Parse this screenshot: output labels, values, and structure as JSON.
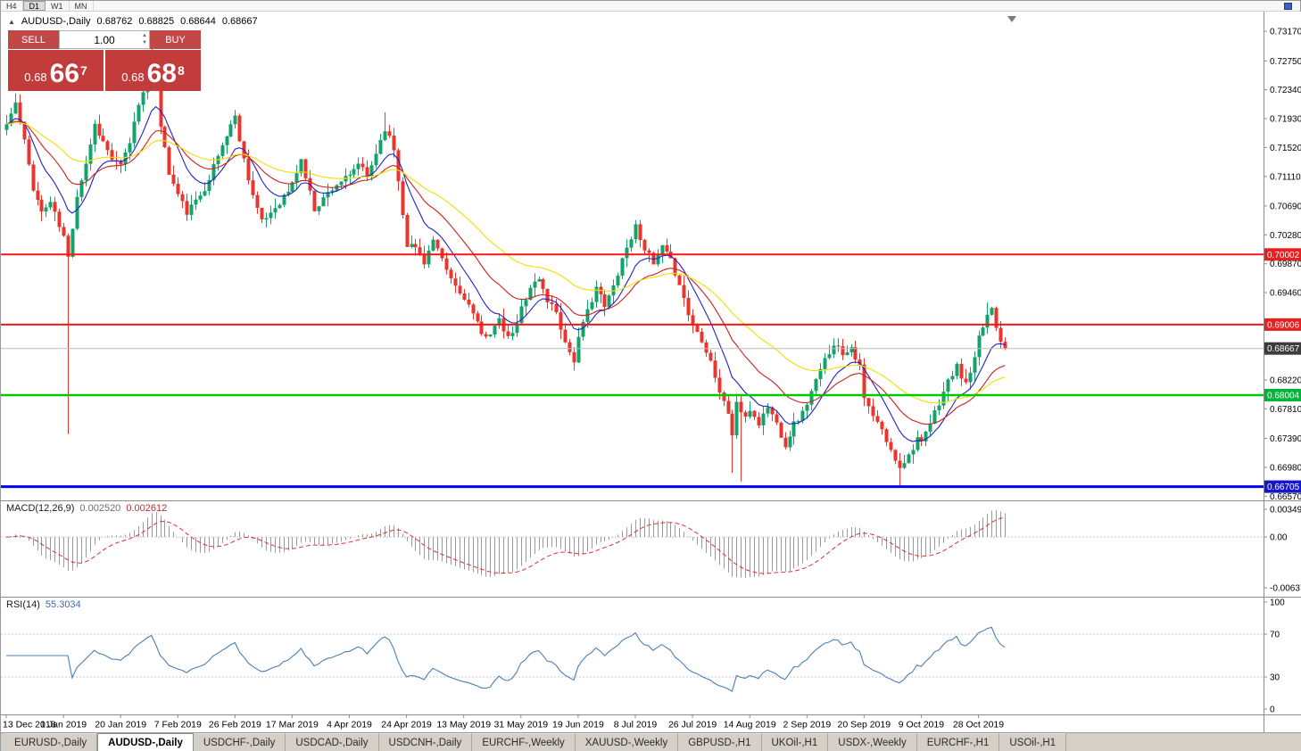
{
  "toolbar": {
    "timeframes": [
      {
        "label": "H4",
        "active": false
      },
      {
        "label": "D1",
        "active": true
      },
      {
        "label": "W1",
        "active": false
      },
      {
        "label": "MN",
        "active": false
      }
    ]
  },
  "chart": {
    "symbol_title": "AUDUSD-,Daily",
    "open": "0.68762",
    "high": "0.68825",
    "low": "0.68644",
    "close": "0.68667"
  },
  "trade_panel": {
    "sell_label": "SELL",
    "buy_label": "BUY",
    "volume": "1.00",
    "sell_price_small": "0.68",
    "sell_price_big": "66",
    "sell_price_sup": "7",
    "buy_price_small": "0.68",
    "buy_price_big": "68",
    "buy_price_sup": "8"
  },
  "price_axis": {
    "ticks": [
      {
        "t": "0.73170",
        "p": 0.7317
      },
      {
        "t": "0.72750",
        "p": 0.7275
      },
      {
        "t": "0.72340",
        "p": 0.7234
      },
      {
        "t": "0.71930",
        "p": 0.7193
      },
      {
        "t": "0.71520",
        "p": 0.7152
      },
      {
        "t": "0.71110",
        "p": 0.7111
      },
      {
        "t": "0.70690",
        "p": 0.7069
      },
      {
        "t": "0.70280",
        "p": 0.7028
      },
      {
        "t": "0.69870",
        "p": 0.6987
      },
      {
        "t": "0.69460",
        "p": 0.6946
      },
      {
        "t": "0.68220",
        "p": 0.6822
      },
      {
        "t": "0.67810",
        "p": 0.6781
      },
      {
        "t": "0.67390",
        "p": 0.6739
      },
      {
        "t": "0.66980",
        "p": 0.6698
      },
      {
        "t": "0.66570",
        "p": 0.6657
      }
    ],
    "badges": [
      {
        "t": "0.70002",
        "p": 0.70002,
        "bg": "#e81f1f"
      },
      {
        "t": "0.69006",
        "p": 0.69006,
        "bg": "#e81f1f"
      },
      {
        "t": "0.68667",
        "p": 0.68667,
        "bg": "#3c3c3c"
      },
      {
        "t": "0.68004",
        "p": 0.68004,
        "bg": "#00b43c"
      },
      {
        "t": "0.66705",
        "p": 0.66705,
        "bg": "#1616cc"
      }
    ]
  },
  "hlines": [
    {
      "p": 0.70002,
      "color": "#ff1414",
      "w": 2,
      "current": false
    },
    {
      "p": 0.69006,
      "color": "#ff1414",
      "w": 2,
      "current": false
    },
    {
      "p": 0.68667,
      "color": "#bcbcbc",
      "w": 1,
      "current": true
    },
    {
      "p": 0.68004,
      "color": "#00c800",
      "w": 2.5,
      "current": false
    },
    {
      "p": 0.66705,
      "color": "#0000ff",
      "w": 3,
      "current": false
    }
  ],
  "macd_panel": {
    "label": "MACD(12,26,9)",
    "main_value": "0.002520",
    "signal_value": "0.002612",
    "axis_top": "0.00349",
    "axis_zero": "0.00",
    "axis_bottom": "-0.00637"
  },
  "rsi_panel": {
    "label": "RSI(14)",
    "value": "55.3034",
    "axis_top": "100",
    "axis_high": "70",
    "axis_low": "30",
    "axis_bottom": "0",
    "levels": [
      70,
      30
    ]
  },
  "tabs": {
    "items": [
      {
        "label": "EURUSD-,Daily",
        "active": false
      },
      {
        "label": "AUDUSD-,Daily",
        "active": true
      },
      {
        "label": "USDCHF-,Daily",
        "active": false
      },
      {
        "label": "USDCAD-,Daily",
        "active": false
      },
      {
        "label": "USDCNH-,Daily",
        "active": false
      },
      {
        "label": "EURCHF-,Weekly",
        "active": false
      },
      {
        "label": "XAUUSD-,Weekly",
        "active": false
      },
      {
        "label": "GBPUSD-,H1",
        "active": false
      },
      {
        "label": "UKOil-,H1",
        "active": false
      },
      {
        "label": "USDX-,Weekly",
        "active": false
      },
      {
        "label": "EURCHF-,H1",
        "active": false
      },
      {
        "label": "USOil-,H1",
        "active": false
      }
    ]
  },
  "chart_data": {
    "type": "candlestick",
    "symbol": "AUDUSD",
    "timeframe": "Daily",
    "count": 228,
    "price_min": 0.6651,
    "price_max": 0.7345,
    "noise": 0.0005,
    "wick": 0.0014,
    "seed": 11,
    "ohlc_today": {
      "open": 0.68762,
      "high": 0.68825,
      "low": 0.68644,
      "close": 0.68667
    },
    "bid": 0.68667,
    "ask": 0.68688,
    "levels": {
      "resistance": [
        0.70002,
        0.69006
      ],
      "support_green": 0.68004,
      "support_blue": 0.66705
    },
    "up_color": "#13a36a",
    "down_color": "#e8352e",
    "ma": [
      {
        "period": 10,
        "color": "#2121cc"
      },
      {
        "period": 22,
        "color": "#cc2020"
      },
      {
        "period": 45,
        "color": "#efdf00"
      }
    ],
    "macd": {
      "fast": 12,
      "slow": 26,
      "signal": 9,
      "hist_color": "#9a9a9a",
      "signal_color": "#e03030",
      "scale_top": 0.00349,
      "scale_bottom": -0.00637,
      "last_main": 0.00252,
      "last_signal": 0.002612
    },
    "rsi": {
      "period": 14,
      "color": "#4a7fb5",
      "last": 55.3034
    },
    "anchors": [
      [
        0,
        0.7185
      ],
      [
        2,
        0.7215
      ],
      [
        4,
        0.716
      ],
      [
        6,
        0.7095
      ],
      [
        8,
        0.706
      ],
      [
        10,
        0.7075
      ],
      [
        12,
        0.704
      ],
      [
        13,
        0.7025
      ],
      [
        14,
        0.6995
      ],
      [
        15,
        0.704
      ],
      [
        16,
        0.7085
      ],
      [
        18,
        0.713
      ],
      [
        20,
        0.7185
      ],
      [
        22,
        0.716
      ],
      [
        24,
        0.7135
      ],
      [
        26,
        0.7125
      ],
      [
        28,
        0.716
      ],
      [
        30,
        0.7215
      ],
      [
        32,
        0.7255
      ],
      [
        33,
        0.727
      ],
      [
        34,
        0.724
      ],
      [
        35,
        0.7185
      ],
      [
        37,
        0.7115
      ],
      [
        39,
        0.7085
      ],
      [
        41,
        0.706
      ],
      [
        43,
        0.7075
      ],
      [
        45,
        0.7095
      ],
      [
        47,
        0.7125
      ],
      [
        49,
        0.7155
      ],
      [
        51,
        0.7185
      ],
      [
        52,
        0.7195
      ],
      [
        54,
        0.7135
      ],
      [
        56,
        0.7085
      ],
      [
        58,
        0.7045
      ],
      [
        60,
        0.706
      ],
      [
        62,
        0.7075
      ],
      [
        64,
        0.709
      ],
      [
        65,
        0.71
      ],
      [
        67,
        0.7135
      ],
      [
        68,
        0.711
      ],
      [
        70,
        0.7065
      ],
      [
        72,
        0.708
      ],
      [
        74,
        0.7095
      ],
      [
        76,
        0.7105
      ],
      [
        78,
        0.711
      ],
      [
        80,
        0.713
      ],
      [
        82,
        0.711
      ],
      [
        84,
        0.7145
      ],
      [
        86,
        0.718
      ],
      [
        88,
        0.715
      ],
      [
        90,
        0.706
      ],
      [
        91,
        0.7015
      ],
      [
        93,
        0.701
      ],
      [
        95,
        0.699
      ],
      [
        97,
        0.702
      ],
      [
        99,
        0.699
      ],
      [
        101,
        0.6965
      ],
      [
        103,
        0.6945
      ],
      [
        104,
        0.694
      ],
      [
        106,
        0.6915
      ],
      [
        108,
        0.6885
      ],
      [
        110,
        0.689
      ],
      [
        112,
        0.6905
      ],
      [
        114,
        0.688
      ],
      [
        116,
        0.69
      ],
      [
        117,
        0.6925
      ],
      [
        119,
        0.6955
      ],
      [
        121,
        0.6965
      ],
      [
        123,
        0.6935
      ],
      [
        125,
        0.692
      ],
      [
        127,
        0.6875
      ],
      [
        129,
        0.685
      ],
      [
        130,
        0.688
      ],
      [
        132,
        0.692
      ],
      [
        134,
        0.6955
      ],
      [
        136,
        0.6925
      ],
      [
        138,
        0.6955
      ],
      [
        140,
        0.6995
      ],
      [
        142,
        0.7025
      ],
      [
        143,
        0.704
      ],
      [
        145,
        0.701
      ],
      [
        147,
        0.6985
      ],
      [
        149,
        0.701
      ],
      [
        151,
        0.699
      ],
      [
        153,
        0.696
      ],
      [
        155,
        0.6915
      ],
      [
        156,
        0.69
      ],
      [
        158,
        0.688
      ],
      [
        160,
        0.685
      ],
      [
        162,
        0.6805
      ],
      [
        164,
        0.6775
      ],
      [
        165,
        0.6745
      ],
      [
        166,
        0.679
      ],
      [
        168,
        0.6765
      ],
      [
        169,
        0.678
      ],
      [
        171,
        0.676
      ],
      [
        173,
        0.6785
      ],
      [
        175,
        0.676
      ],
      [
        177,
        0.673
      ],
      [
        179,
        0.676
      ],
      [
        181,
        0.6775
      ],
      [
        182,
        0.679
      ],
      [
        184,
        0.682
      ],
      [
        186,
        0.685
      ],
      [
        188,
        0.6875
      ],
      [
        190,
        0.686
      ],
      [
        192,
        0.687
      ],
      [
        194,
        0.684
      ],
      [
        195,
        0.6795
      ],
      [
        197,
        0.677
      ],
      [
        199,
        0.675
      ],
      [
        201,
        0.672
      ],
      [
        203,
        0.67
      ],
      [
        205,
        0.6715
      ],
      [
        207,
        0.674
      ],
      [
        208,
        0.673
      ],
      [
        210,
        0.676
      ],
      [
        212,
        0.679
      ],
      [
        214,
        0.682
      ],
      [
        216,
        0.684
      ],
      [
        218,
        0.6815
      ],
      [
        220,
        0.685
      ],
      [
        221,
        0.688
      ],
      [
        223,
        0.6915
      ],
      [
        224,
        0.6925
      ],
      [
        225,
        0.69
      ],
      [
        226,
        0.68762
      ],
      [
        227,
        0.68667
      ]
    ],
    "wick_overrides": [
      {
        "i": 14,
        "low": 0.6745
      },
      {
        "i": 33,
        "high": 0.7295
      },
      {
        "i": 86,
        "high": 0.7202
      },
      {
        "i": 165,
        "low": 0.669
      },
      {
        "i": 167,
        "low": 0.6678
      },
      {
        "i": 203,
        "low": 0.667
      },
      {
        "i": 223,
        "high": 0.6932
      },
      {
        "i": 227,
        "high": 0.68825,
        "low": 0.68644
      }
    ],
    "force_closes": [
      [
        226,
        0.68762
      ],
      [
        227,
        0.68667
      ]
    ],
    "x_labels": [
      {
        "i": 0,
        "text": "13 Dec 2018"
      },
      {
        "i": 13,
        "text": "1 Jan 2019"
      },
      {
        "i": 26,
        "text": "20 Jan 2019"
      },
      {
        "i": 39,
        "text": "7 Feb 2019"
      },
      {
        "i": 52,
        "text": "26 Feb 2019"
      },
      {
        "i": 65,
        "text": "17 Mar 2019"
      },
      {
        "i": 78,
        "text": "4 Apr 2019"
      },
      {
        "i": 91,
        "text": "24 Apr 2019"
      },
      {
        "i": 104,
        "text": "13 May 2019"
      },
      {
        "i": 117,
        "text": "31 May 2019"
      },
      {
        "i": 130,
        "text": "19 Jun 2019"
      },
      {
        "i": 143,
        "text": "8 Jul 2019"
      },
      {
        "i": 156,
        "text": "26 Jul 2019"
      },
      {
        "i": 169,
        "text": "14 Aug 2019"
      },
      {
        "i": 182,
        "text": "2 Sep 2019"
      },
      {
        "i": 195,
        "text": "20 Sep 2019"
      },
      {
        "i": 208,
        "text": "9 Oct 2019"
      },
      {
        "i": 221,
        "text": "28 Oct 2019"
      }
    ]
  }
}
